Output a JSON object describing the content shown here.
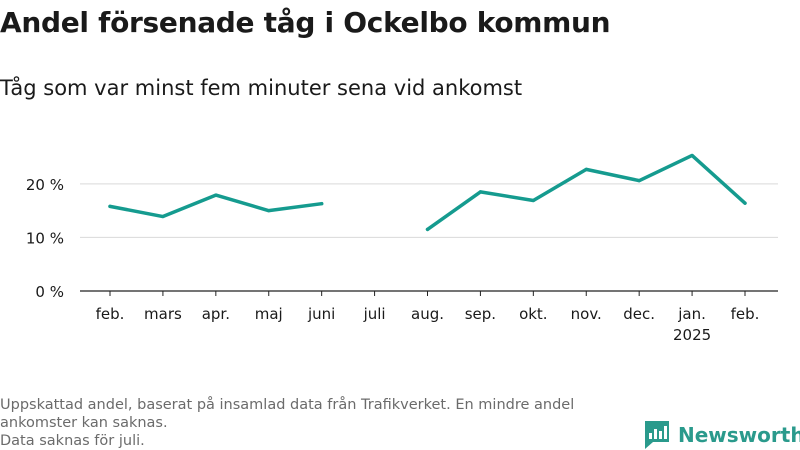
{
  "title": "Andel försenade tåg i Ockelbo kommun",
  "subtitle": "Tåg som var minst fem minuter sena vid ankomst",
  "footnote": {
    "line1": "Uppskattad andel, baserat på insamlad data från Trafikverket. En mindre andel",
    "line2": "ankomster kan saknas.",
    "line3": "Data saknas för juli."
  },
  "brand": {
    "name": "Newsworthy",
    "icon": "newsworthy-logo-icon"
  },
  "colors": {
    "line": "#159b8f",
    "grid": "#d9d9d9",
    "text": "#1a1a1a",
    "muted": "#6b6b6b"
  },
  "chart_data": {
    "type": "line",
    "title": "Andel försenade tåg i Ockelbo kommun",
    "subtitle": "Tåg som var minst fem minuter sena vid ankomst",
    "categories": [
      "feb.",
      "mars",
      "apr.",
      "maj",
      "juni",
      "juli",
      "aug.",
      "sep.",
      "okt.",
      "nov.",
      "dec.",
      "jan.",
      "feb."
    ],
    "year_labels": [
      "",
      "",
      "",
      "",
      "",
      "",
      "",
      "",
      "",
      "",
      "",
      "2025",
      ""
    ],
    "series": [
      {
        "values": [
          15.8,
          13.9,
          17.9,
          15.0,
          16.3,
          null,
          11.5,
          18.5,
          16.9,
          22.7,
          20.6,
          25.3,
          16.4
        ]
      }
    ],
    "yticks": [
      0,
      10,
      20
    ],
    "ytick_labels": [
      "0 %",
      "10 %",
      "20 %"
    ],
    "ylim": [
      0,
      28
    ],
    "grid": true,
    "legend": "none"
  }
}
